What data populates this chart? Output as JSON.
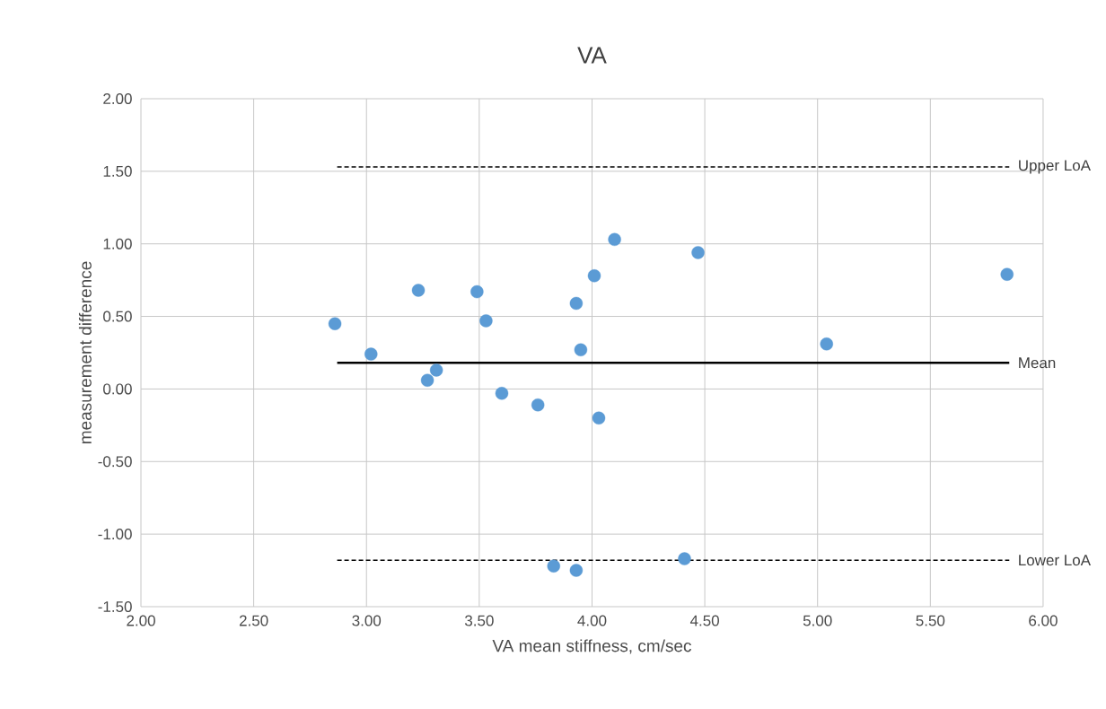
{
  "chart_data": {
    "type": "scatter",
    "title": "VA",
    "xlabel": "VA mean stiffness, cm/sec",
    "ylabel": "measurement difference",
    "xlim": [
      2,
      6
    ],
    "ylim": [
      -1.5,
      2
    ],
    "xticks": [
      {
        "value": 2,
        "label": "2.00"
      },
      {
        "value": 2.5,
        "label": "2.50"
      },
      {
        "value": 3,
        "label": "3.00"
      },
      {
        "value": 3.5,
        "label": "3.50"
      },
      {
        "value": 4,
        "label": "4.00"
      },
      {
        "value": 4.5,
        "label": "4.50"
      },
      {
        "value": 5,
        "label": "5.00"
      },
      {
        "value": 5.5,
        "label": "5.50"
      },
      {
        "value": 6,
        "label": "6.00"
      }
    ],
    "yticks": [
      {
        "value": -1.5,
        "label": "-1.50"
      },
      {
        "value": -1,
        "label": "-1.00"
      },
      {
        "value": -0.5,
        "label": "-0.50"
      },
      {
        "value": 0,
        "label": "0.00"
      },
      {
        "value": 0.5,
        "label": "0.50"
      },
      {
        "value": 1,
        "label": "1.00"
      },
      {
        "value": 1.5,
        "label": "1.50"
      },
      {
        "value": 2,
        "label": "2.00"
      }
    ],
    "grid": true,
    "series": [
      {
        "marker": "circle",
        "color": "#5b9bd5",
        "x": [
          2.86,
          3.02,
          3.23,
          3.27,
          3.31,
          3.49,
          3.53,
          3.6,
          3.76,
          3.83,
          3.93,
          3.93,
          3.95,
          4.01,
          4.03,
          4.1,
          4.41,
          4.47,
          5.04,
          5.84
        ],
        "values": [
          0.45,
          0.24,
          0.68,
          0.06,
          0.13,
          0.67,
          0.47,
          -0.03,
          -0.11,
          -1.22,
          0.59,
          -1.25,
          0.27,
          0.78,
          -0.2,
          1.03,
          -1.17,
          0.94,
          0.31,
          0.79
        ]
      },
      {
        "type": "line",
        "name": "Upper LoA",
        "color": "#000000",
        "marker": "none",
        "line_style": "dashed",
        "x": [
          2.87,
          5.85
        ],
        "values": [
          1.53,
          1.53
        ]
      },
      {
        "type": "line",
        "name": "Mean",
        "color": "#000000",
        "marker": "none",
        "line_style": "solid",
        "x": [
          2.87,
          5.85
        ],
        "values": [
          0.18,
          0.18
        ]
      },
      {
        "type": "line",
        "name": "Lower LoA",
        "color": "#000000",
        "marker": "none",
        "line_style": "dashed",
        "x": [
          2.87,
          5.85
        ],
        "values": [
          -1.18,
          -1.18
        ]
      }
    ]
  }
}
